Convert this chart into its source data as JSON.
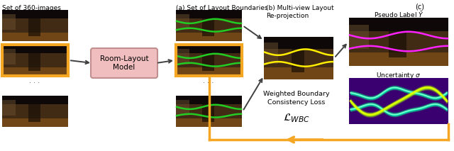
{
  "bg_color": "#ffffff",
  "label_set1": "Set of 360-images",
  "label_a": "(a) Set of Layout Boundaries",
  "label_b": "(b) Multi-view Layout\nRe-projection",
  "label_c": "(c)",
  "label_pseudo": "Pseudo Label $\\bar{Y}$",
  "label_uncertainty": "Uncertainty $\\sigma$",
  "label_wbc": "Weighted Boundary\nConsistency Loss",
  "label_lwbc": "$\\mathcal{L}_{WBC}$",
  "label_room_layout": "Room-Layout\nModel",
  "orange": "#F5A623",
  "dark_arrow": "#404040",
  "pink_box_fill": "#F0BEBE",
  "pink_box_edge": "#C09090",
  "green_line": "#22CC22",
  "yellow_line": "#FFEE00",
  "magenta_line": "#FF22FF",
  "img_dark_bg": "#1a1208",
  "img_floor": "#7a5020",
  "img_wall": "#3a2510",
  "img_ceil": "#0a0808",
  "uncertainty_bg": "#3B0070"
}
